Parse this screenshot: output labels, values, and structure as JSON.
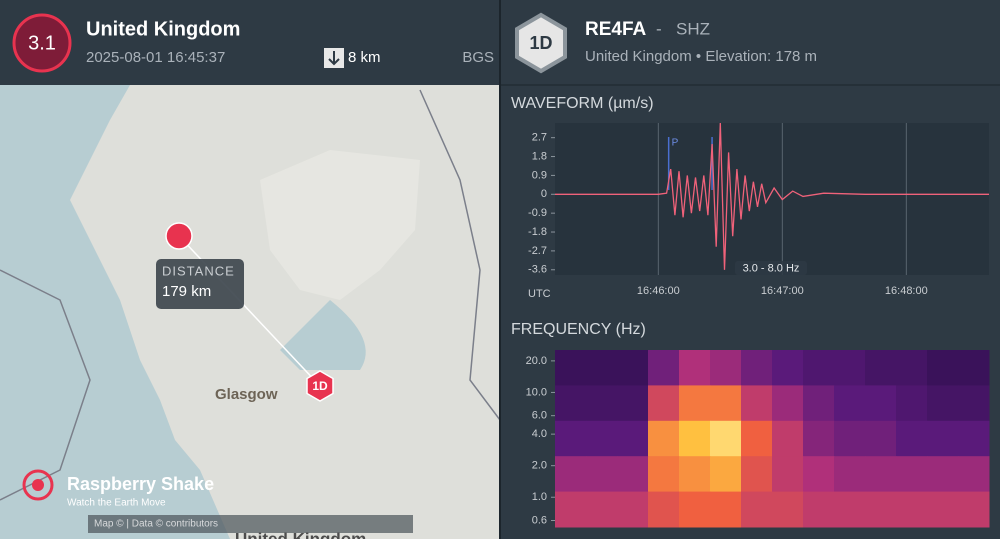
{
  "event": {
    "magnitude": "3.1",
    "region": "United Kingdom",
    "time": "2025-08-01 16:45:37",
    "depth": "8 km",
    "agency": "BGS"
  },
  "map": {
    "distance_label": "DISTANCE",
    "distance": "179 km",
    "city": "Glasgow",
    "station_badge": "1D",
    "brand": "Raspberry Shake",
    "tagline": "Watch the Earth Move",
    "attribution": "Map ©  | Data ©  contributors",
    "bottom_label": "United Kingdom"
  },
  "station": {
    "badge": "1D",
    "name": "RE4FA",
    "separator": "-",
    "channel": "SHZ",
    "location": "United Kingdom • Elevation: 178 m"
  },
  "waveform": {
    "title": "WAVEFORM (µm/s)",
    "type": "line",
    "color": "#f0627a",
    "x": [
      "16:45:10",
      "16:45:40",
      "16:46:00",
      "16:46:04",
      "16:46:06",
      "16:46:08",
      "16:46:10",
      "16:46:12",
      "16:46:14",
      "16:46:16",
      "16:46:18",
      "16:46:20",
      "16:46:22",
      "16:46:24",
      "16:46:26",
      "16:46:28",
      "16:46:30",
      "16:46:32",
      "16:46:34",
      "16:46:36",
      "16:46:38",
      "16:46:40",
      "16:46:42",
      "16:46:44",
      "16:46:46",
      "16:46:48",
      "16:46:50",
      "16:46:52",
      "16:46:56",
      "16:47:00",
      "16:47:05",
      "16:47:10",
      "16:47:20",
      "16:47:40",
      "16:48:40"
    ],
    "values": [
      0,
      0,
      0,
      0.05,
      1.2,
      -1.0,
      1.1,
      -1.1,
      0.9,
      -0.9,
      0.8,
      -0.8,
      0.9,
      -1.0,
      2.4,
      -2.5,
      3.4,
      -3.6,
      2.0,
      -2.0,
      1.2,
      -1.2,
      0.9,
      -0.8,
      0.6,
      -0.6,
      0.5,
      -0.4,
      0.3,
      -0.25,
      0.15,
      -0.1,
      0.05,
      0,
      0
    ],
    "xlim": [
      "16:45:10",
      "16:48:40"
    ],
    "xticks": [
      "16:46:00",
      "16:47:00",
      "16:48:00"
    ],
    "x_axis_label": "UTC",
    "ylim": [
      -3.85,
      3.4
    ],
    "yticks": [
      2.7,
      1.8,
      0.9,
      0,
      -0.9,
      -1.8,
      -2.7,
      -3.6
    ],
    "phase_label": "P",
    "phase_time": "16:46:05",
    "second_marker_time": "16:46:26",
    "filter": "3.0 - 8.0 Hz"
  },
  "spectrogram": {
    "title": "FREQUENCY (Hz)",
    "type": "heatmap",
    "log_scale": true,
    "ylim": [
      0.52,
      25.4
    ],
    "yticks": [
      {
        "value": 20,
        "label": "20.0"
      },
      {
        "value": 10,
        "label": "10.0"
      },
      {
        "value": 6,
        "label": "6.0"
      },
      {
        "value": 4,
        "label": "4.0"
      },
      {
        "value": 2,
        "label": "2.0"
      },
      {
        "value": 1,
        "label": "1.0"
      },
      {
        "value": 0.6,
        "label": "0.6"
      }
    ],
    "power": [
      [
        0.15,
        0.15,
        0.15,
        0.35,
        0.5,
        0.45,
        0.35,
        0.3,
        0.25,
        0.25,
        0.2,
        0.2,
        0.15,
        0.15
      ],
      [
        0.2,
        0.2,
        0.2,
        0.6,
        0.75,
        0.75,
        0.55,
        0.45,
        0.35,
        0.3,
        0.3,
        0.25,
        0.2,
        0.2
      ],
      [
        0.3,
        0.3,
        0.3,
        0.8,
        0.9,
        0.95,
        0.7,
        0.55,
        0.4,
        0.35,
        0.35,
        0.3,
        0.3,
        0.3
      ],
      [
        0.45,
        0.45,
        0.45,
        0.75,
        0.8,
        0.85,
        0.65,
        0.55,
        0.5,
        0.45,
        0.45,
        0.45,
        0.45,
        0.45
      ],
      [
        0.55,
        0.55,
        0.55,
        0.65,
        0.7,
        0.7,
        0.6,
        0.6,
        0.55,
        0.55,
        0.55,
        0.55,
        0.55,
        0.55
      ]
    ]
  }
}
